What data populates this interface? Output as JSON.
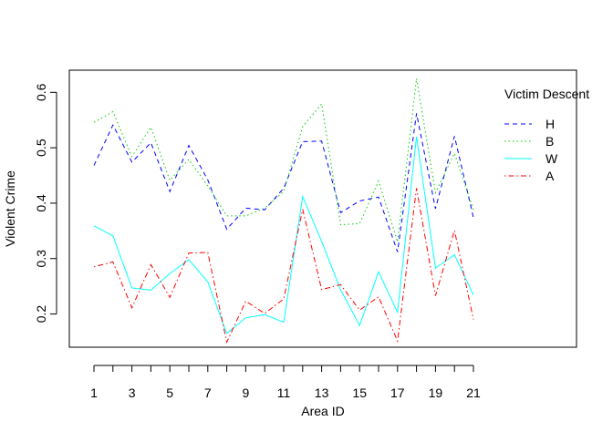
{
  "chart_data": {
    "type": "line",
    "xlabel": "Area ID",
    "ylabel": "Violent Crime",
    "x": [
      1,
      2,
      3,
      4,
      5,
      6,
      7,
      8,
      9,
      10,
      11,
      12,
      13,
      14,
      15,
      16,
      17,
      18,
      19,
      20,
      21
    ],
    "xticks": [
      1,
      3,
      5,
      7,
      9,
      11,
      13,
      15,
      17,
      19,
      21
    ],
    "xlim": [
      1,
      21
    ],
    "ylim": [
      0.14,
      0.64
    ],
    "yticks": [
      0.2,
      0.3,
      0.4,
      0.5,
      0.6
    ],
    "ytick_labels": [
      "0.2",
      "0.3",
      "0.4",
      "0.5",
      "0.6"
    ],
    "grid": false,
    "legend": {
      "title": "Victim Descent",
      "position": "right"
    },
    "series": [
      {
        "name": "H",
        "color": "#0000ff",
        "dash": "dashed",
        "values": [
          0.468,
          0.541,
          0.474,
          0.509,
          0.421,
          0.504,
          0.442,
          0.353,
          0.391,
          0.388,
          0.427,
          0.511,
          0.512,
          0.383,
          0.404,
          0.411,
          0.312,
          0.562,
          0.39,
          0.521,
          0.374
        ]
      },
      {
        "name": "B",
        "color": "#00cc00",
        "dash": "dotted",
        "values": [
          0.546,
          0.565,
          0.484,
          0.537,
          0.441,
          0.479,
          0.431,
          0.377,
          0.377,
          0.391,
          0.421,
          0.538,
          0.579,
          0.361,
          0.363,
          0.44,
          0.33,
          0.625,
          0.419,
          0.49,
          0.388
        ]
      },
      {
        "name": "W",
        "color": "#00ffff",
        "dash": "solid",
        "values": [
          0.359,
          0.341,
          0.247,
          0.243,
          0.273,
          0.298,
          0.258,
          0.165,
          0.193,
          0.199,
          0.185,
          0.412,
          0.331,
          0.244,
          0.179,
          0.276,
          0.203,
          0.52,
          0.283,
          0.307,
          0.234
        ]
      },
      {
        "name": "A",
        "color": "#ff0000",
        "dash": "dotdash",
        "values": [
          0.285,
          0.294,
          0.211,
          0.289,
          0.23,
          0.31,
          0.311,
          0.149,
          0.223,
          0.201,
          0.227,
          0.389,
          0.244,
          0.253,
          0.207,
          0.231,
          0.151,
          0.427,
          0.233,
          0.351,
          0.19
        ]
      }
    ]
  }
}
